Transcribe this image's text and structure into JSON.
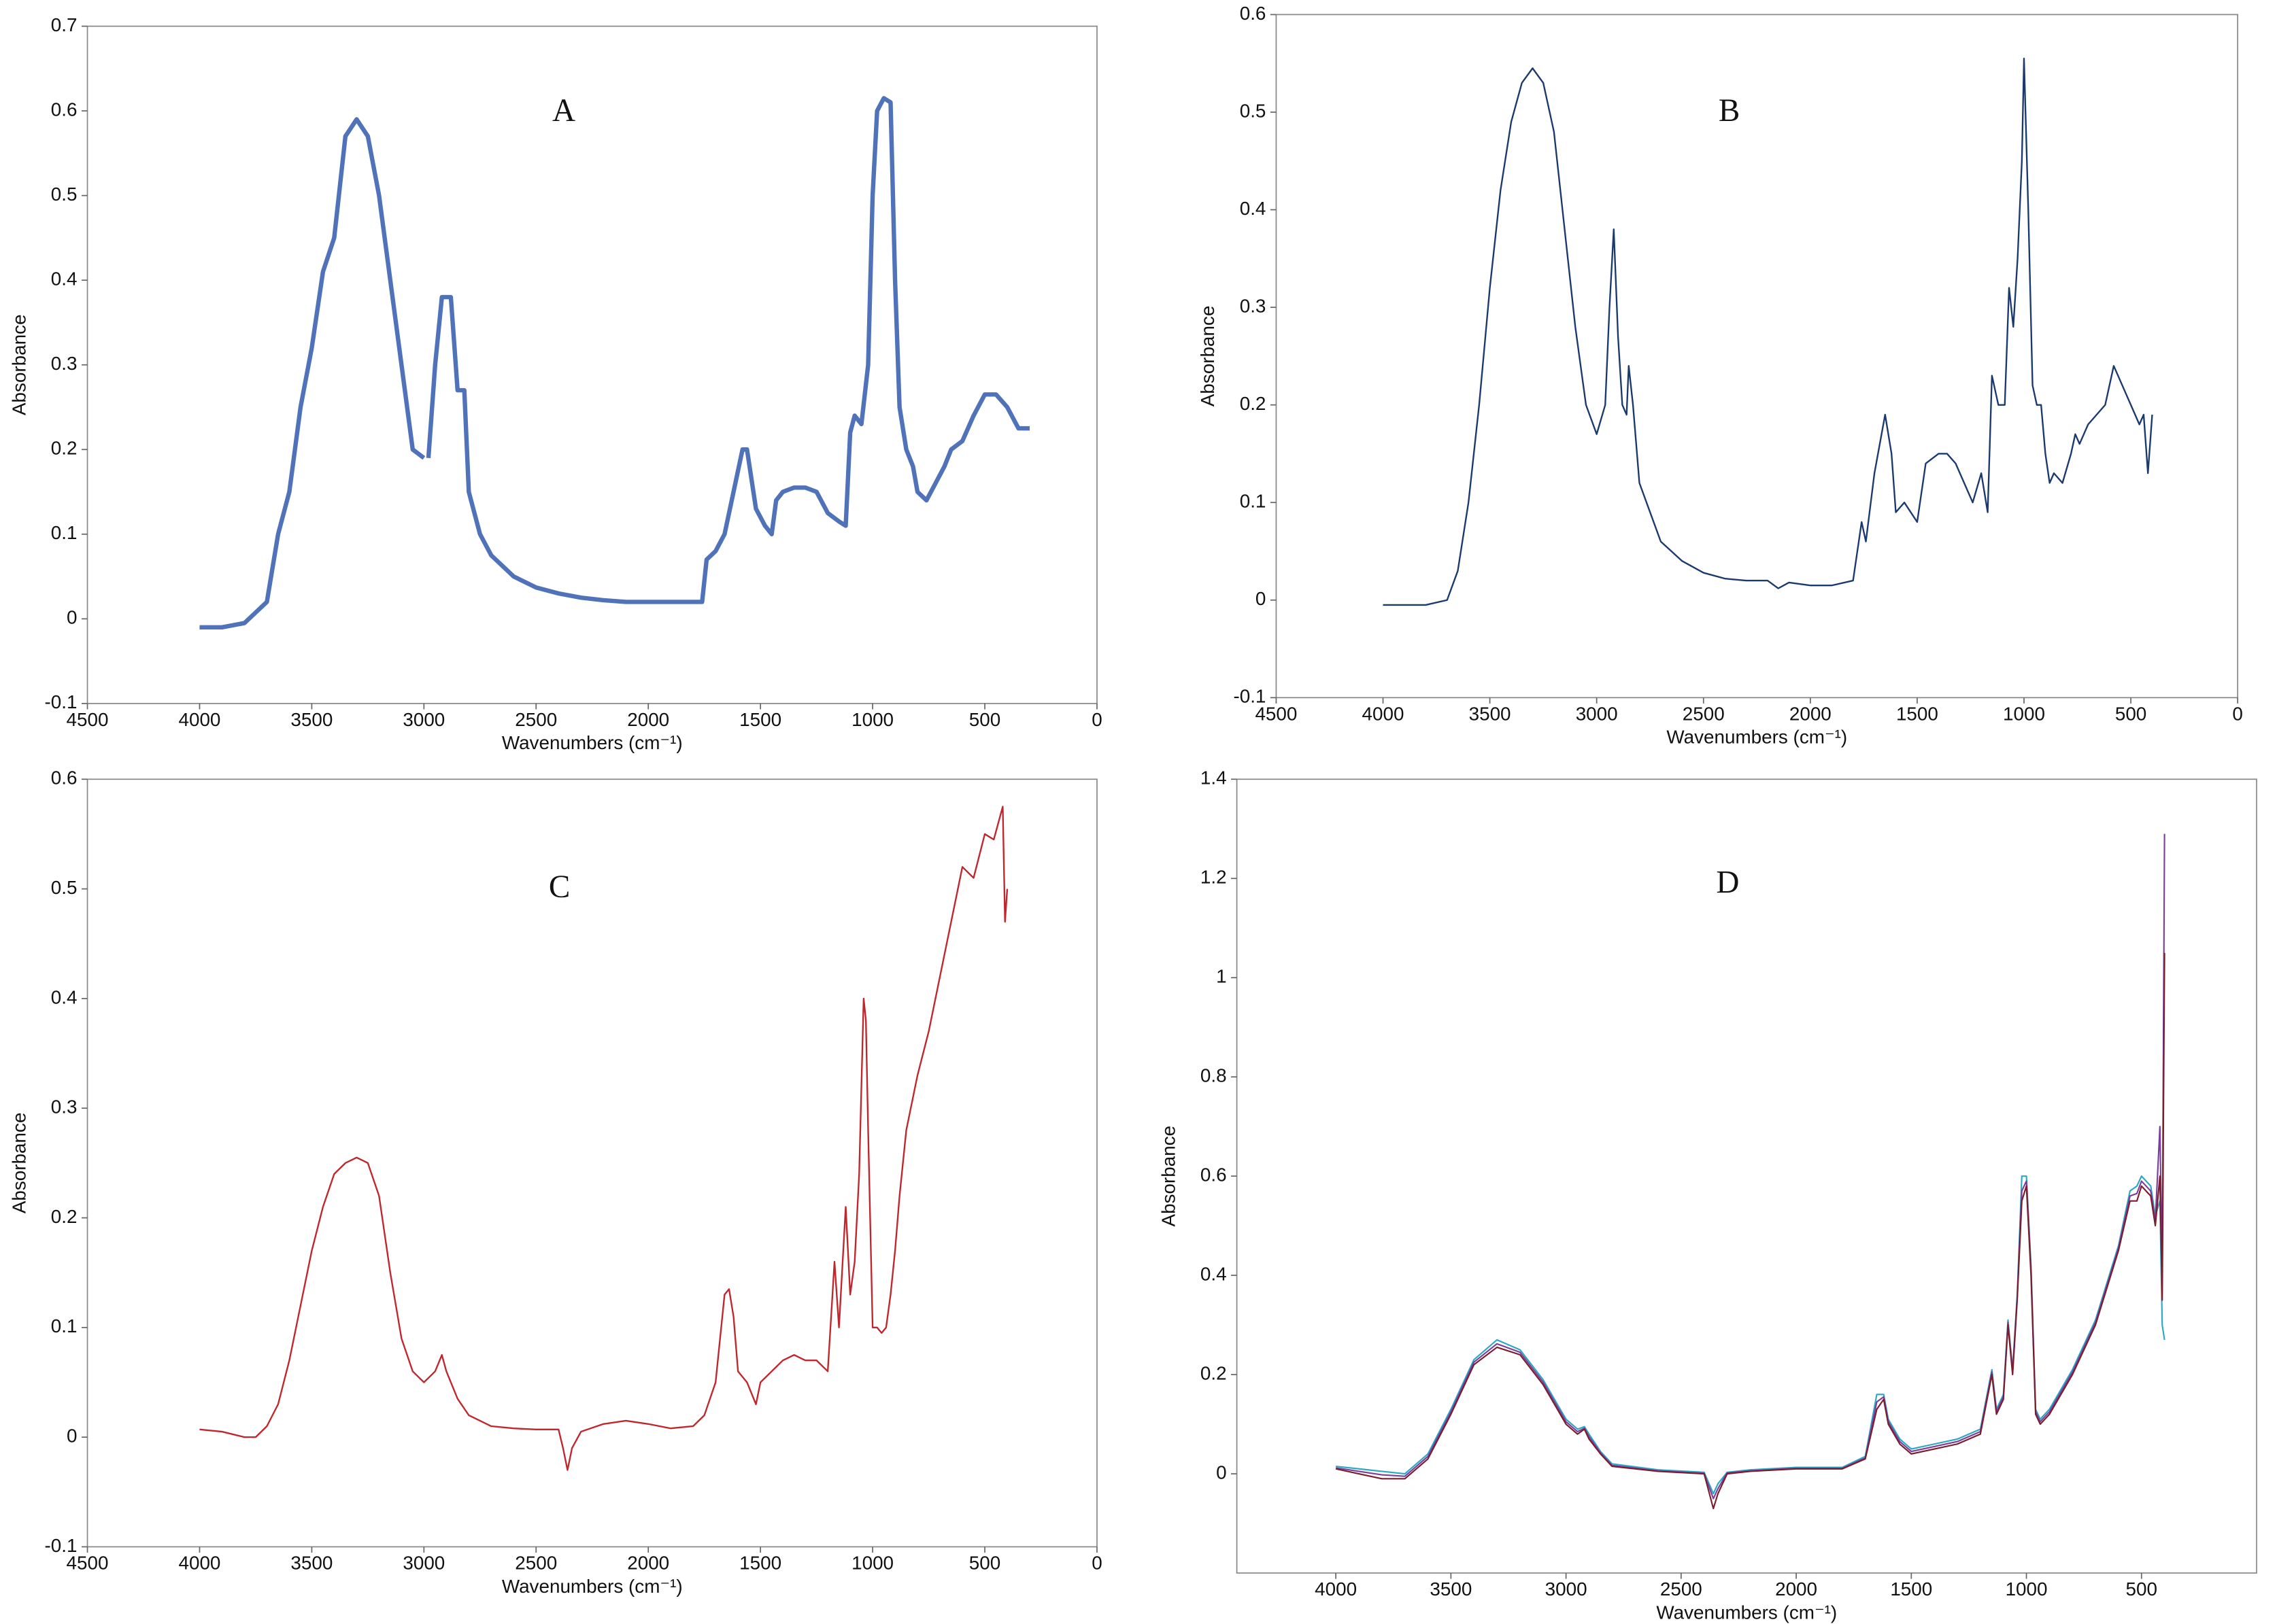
{
  "chart_data": [
    {
      "type": "line",
      "label": "A",
      "x_label": "Wavenumbers (cm⁻¹)",
      "y_label": "Absorbance",
      "color": "#4f72b8",
      "xlim": [
        4500,
        0
      ],
      "xticks": [
        4500,
        4000,
        3500,
        3000,
        2500,
        2000,
        1500,
        1000,
        500,
        0
      ],
      "ylim": [
        -0.1,
        0.7
      ],
      "yticks": [
        -0.1,
        0,
        0.1,
        0.2,
        0.3,
        0.4,
        0.5,
        0.6,
        0.7
      ],
      "x": [
        4000,
        3900,
        3800,
        3700,
        3650,
        3600,
        3550,
        3500,
        3450,
        3400,
        3350,
        3300,
        3250,
        3200,
        3150,
        3100,
        3050,
        3000,
        2990,
        2980,
        2950,
        2920,
        2880,
        2850,
        2820,
        2800,
        2750,
        2700,
        2600,
        2500,
        2400,
        2300,
        2200,
        2100,
        2000,
        1900,
        1800,
        1760,
        1740,
        1700,
        1660,
        1620,
        1580,
        1560,
        1520,
        1480,
        1450,
        1430,
        1400,
        1350,
        1300,
        1250,
        1200,
        1150,
        1120,
        1100,
        1080,
        1050,
        1020,
        1000,
        980,
        950,
        920,
        900,
        880,
        850,
        820,
        800,
        760,
        720,
        680,
        650,
        600,
        550,
        500,
        450,
        400,
        350,
        300
      ],
      "values": [
        -0.01,
        -0.01,
        -0.005,
        0.02,
        0.1,
        0.15,
        0.25,
        0.32,
        0.41,
        0.45,
        0.57,
        0.59,
        0.57,
        0.5,
        0.4,
        0.3,
        0.2,
        0.19,
        null,
        0.19,
        0.3,
        0.38,
        0.38,
        0.27,
        0.27,
        0.15,
        0.1,
        0.075,
        0.05,
        0.037,
        0.03,
        0.025,
        0.022,
        0.02,
        0.02,
        0.02,
        0.02,
        0.02,
        0.07,
        0.08,
        0.1,
        0.15,
        0.2,
        0.2,
        0.13,
        0.11,
        0.1,
        0.14,
        0.15,
        0.155,
        0.155,
        0.15,
        0.125,
        0.115,
        0.11,
        0.22,
        0.24,
        0.23,
        0.3,
        0.5,
        0.6,
        0.615,
        0.61,
        0.4,
        0.25,
        0.2,
        0.18,
        0.15,
        0.14,
        0.16,
        0.18,
        0.2,
        0.21,
        0.24,
        0.265,
        0.265,
        0.25,
        0.225,
        0.225
      ]
    },
    {
      "type": "line",
      "label": "B",
      "x_label": "Wavenumbers (cm⁻¹)",
      "y_label": "Absorbance",
      "color": "#1a3a6e",
      "xlim": [
        4500,
        0
      ],
      "xticks": [
        4500,
        4000,
        3500,
        3000,
        2500,
        2000,
        1500,
        1000,
        500,
        0
      ],
      "ylim": [
        -0.1,
        0.6
      ],
      "yticks": [
        -0.1,
        0,
        0.1,
        0.2,
        0.3,
        0.4,
        0.5,
        0.6
      ],
      "x": [
        4000,
        3900,
        3800,
        3700,
        3650,
        3600,
        3550,
        3500,
        3450,
        3400,
        3350,
        3300,
        3250,
        3200,
        3150,
        3100,
        3050,
        3000,
        2960,
        2940,
        2920,
        2900,
        2880,
        2860,
        2850,
        2830,
        2800,
        2700,
        2600,
        2500,
        2400,
        2300,
        2200,
        2150,
        2100,
        2000,
        1900,
        1800,
        1760,
        1740,
        1700,
        1650,
        1620,
        1600,
        1560,
        1530,
        1500,
        1460,
        1400,
        1360,
        1320,
        1280,
        1240,
        1200,
        1170,
        1150,
        1120,
        1090,
        1070,
        1050,
        1030,
        1010,
        1000,
        980,
        960,
        940,
        920,
        900,
        880,
        860,
        820,
        780,
        760,
        740,
        700,
        660,
        620,
        600,
        580,
        560,
        540,
        500,
        460,
        440,
        420,
        400
      ],
      "values": [
        -0.005,
        -0.005,
        -0.005,
        0,
        0.03,
        0.1,
        0.2,
        0.32,
        0.42,
        0.49,
        0.53,
        0.545,
        0.53,
        0.48,
        0.38,
        0.28,
        0.2,
        0.17,
        0.2,
        0.3,
        0.38,
        0.27,
        0.2,
        0.19,
        0.24,
        0.2,
        0.12,
        0.06,
        0.04,
        0.028,
        0.022,
        0.02,
        0.02,
        0.012,
        0.018,
        0.015,
        0.015,
        0.02,
        0.08,
        0.06,
        0.13,
        0.19,
        0.15,
        0.09,
        0.1,
        0.09,
        0.08,
        0.14,
        0.15,
        0.15,
        0.14,
        0.12,
        0.1,
        0.13,
        0.09,
        0.23,
        0.2,
        0.2,
        0.32,
        0.28,
        0.35,
        0.45,
        0.555,
        0.4,
        0.22,
        0.2,
        0.2,
        0.15,
        0.12,
        0.13,
        0.12,
        0.15,
        0.17,
        0.16,
        0.18,
        0.19,
        0.2,
        0.22,
        0.24,
        0.23,
        0.22,
        0.2,
        0.18,
        0.19,
        0.13,
        0.19
      ]
    },
    {
      "type": "line",
      "label": "C",
      "x_label": "Wavenumbers (cm⁻¹)",
      "y_label": "Absorbance",
      "color": "#c0262c",
      "xlim": [
        4500,
        0
      ],
      "xticks": [
        4500,
        4000,
        3500,
        3000,
        2500,
        2000,
        1500,
        1000,
        500,
        0
      ],
      "ylim": [
        -0.1,
        0.6
      ],
      "yticks": [
        -0.1,
        0,
        0.1,
        0.2,
        0.3,
        0.4,
        0.5,
        0.6
      ],
      "x": [
        4000,
        3900,
        3800,
        3750,
        3700,
        3650,
        3600,
        3550,
        3500,
        3450,
        3400,
        3350,
        3300,
        3250,
        3200,
        3150,
        3100,
        3050,
        3000,
        2950,
        2920,
        2900,
        2850,
        2800,
        2700,
        2600,
        2500,
        2400,
        2380,
        2360,
        2340,
        2300,
        2200,
        2100,
        2000,
        1900,
        1800,
        1750,
        1700,
        1660,
        1640,
        1620,
        1600,
        1560,
        1520,
        1500,
        1450,
        1400,
        1350,
        1300,
        1250,
        1200,
        1170,
        1150,
        1120,
        1100,
        1080,
        1060,
        1040,
        1030,
        1020,
        1000,
        980,
        960,
        940,
        920,
        900,
        880,
        850,
        800,
        750,
        700,
        650,
        600,
        550,
        500,
        460,
        440,
        420,
        410,
        400
      ],
      "values": [
        0.007,
        0.005,
        0.0,
        0.0,
        0.01,
        0.03,
        0.07,
        0.12,
        0.17,
        0.21,
        0.24,
        0.25,
        0.255,
        0.25,
        0.22,
        0.15,
        0.09,
        0.06,
        0.05,
        0.06,
        0.075,
        0.06,
        0.035,
        0.02,
        0.01,
        0.008,
        0.007,
        0.007,
        -0.01,
        -0.03,
        -0.01,
        0.005,
        0.012,
        0.015,
        0.012,
        0.008,
        0.01,
        0.02,
        0.05,
        0.13,
        0.135,
        0.11,
        0.06,
        0.05,
        0.03,
        0.05,
        0.06,
        0.07,
        0.075,
        0.07,
        0.07,
        0.06,
        0.16,
        0.1,
        0.21,
        0.13,
        0.16,
        0.24,
        0.4,
        0.38,
        0.28,
        0.1,
        0.1,
        0.095,
        0.1,
        0.13,
        0.17,
        0.22,
        0.28,
        0.33,
        0.37,
        0.42,
        0.47,
        0.52,
        0.51,
        0.55,
        0.545,
        0.56,
        0.575,
        0.47,
        0.5
      ]
    },
    {
      "type": "line",
      "label": "D",
      "x_label": "Wavenumbers (cm⁻¹)",
      "y_label": "Absorbance",
      "xlim": [
        4430,
        0
      ],
      "xticks": [
        4000,
        3500,
        3000,
        2500,
        2000,
        1500,
        1000,
        500
      ],
      "ylim": [
        -0.2,
        1.4
      ],
      "yticks": [
        0,
        0.2,
        0.4,
        0.6,
        0.8,
        1,
        1.2,
        1.4
      ],
      "x": [
        4000,
        3900,
        3800,
        3700,
        3600,
        3500,
        3400,
        3300,
        3200,
        3100,
        3000,
        2950,
        2920,
        2900,
        2850,
        2800,
        2600,
        2400,
        2360,
        2340,
        2300,
        2200,
        2000,
        1800,
        1700,
        1650,
        1620,
        1600,
        1550,
        1500,
        1400,
        1300,
        1200,
        1150,
        1130,
        1100,
        1080,
        1060,
        1040,
        1020,
        1000,
        980,
        960,
        940,
        900,
        800,
        700,
        600,
        550,
        520,
        500,
        460,
        440,
        420,
        410,
        400
      ],
      "series": [
        {
          "color": "#2aa8c4",
          "values": [
            0.015,
            0.01,
            0.005,
            0.0,
            0.04,
            0.13,
            0.23,
            0.27,
            0.25,
            0.19,
            0.11,
            0.09,
            0.095,
            0.08,
            0.045,
            0.02,
            0.008,
            0.003,
            -0.04,
            -0.02,
            0.003,
            0.008,
            0.013,
            0.013,
            0.035,
            0.16,
            0.16,
            0.11,
            0.07,
            0.05,
            0.06,
            0.07,
            0.09,
            0.21,
            0.13,
            0.16,
            0.31,
            0.21,
            0.36,
            0.6,
            0.6,
            0.42,
            0.13,
            0.11,
            0.13,
            0.21,
            0.31,
            0.46,
            0.57,
            0.58,
            0.6,
            0.58,
            0.52,
            0.55,
            0.3,
            0.27
          ]
        },
        {
          "color": "#7b3f99",
          "values": [
            0.012,
            0.005,
            -0.002,
            -0.005,
            0.035,
            0.125,
            0.225,
            0.262,
            0.245,
            0.185,
            0.105,
            0.085,
            0.092,
            0.075,
            0.042,
            0.017,
            0.006,
            0.001,
            -0.05,
            -0.03,
            0.002,
            0.006,
            0.011,
            0.011,
            0.032,
            0.145,
            0.155,
            0.105,
            0.065,
            0.045,
            0.055,
            0.065,
            0.085,
            0.205,
            0.125,
            0.155,
            0.305,
            0.205,
            0.355,
            0.57,
            0.59,
            0.41,
            0.125,
            0.105,
            0.125,
            0.205,
            0.305,
            0.455,
            0.56,
            0.565,
            0.59,
            0.57,
            0.51,
            0.7,
            0.4,
            1.29
          ]
        },
        {
          "color": "#7a1d2e",
          "values": [
            0.01,
            0.0,
            -0.01,
            -0.01,
            0.03,
            0.12,
            0.22,
            0.255,
            0.24,
            0.18,
            0.1,
            0.08,
            0.09,
            0.07,
            0.04,
            0.015,
            0.005,
            0.0,
            -0.07,
            -0.04,
            0.0,
            0.005,
            0.01,
            0.01,
            0.03,
            0.13,
            0.15,
            0.1,
            0.06,
            0.04,
            0.05,
            0.06,
            0.08,
            0.2,
            0.12,
            0.15,
            0.3,
            0.2,
            0.35,
            0.55,
            0.58,
            0.4,
            0.12,
            0.1,
            0.12,
            0.2,
            0.3,
            0.45,
            0.55,
            0.55,
            0.58,
            0.56,
            0.5,
            0.6,
            0.35,
            1.05
          ]
        }
      ]
    }
  ]
}
